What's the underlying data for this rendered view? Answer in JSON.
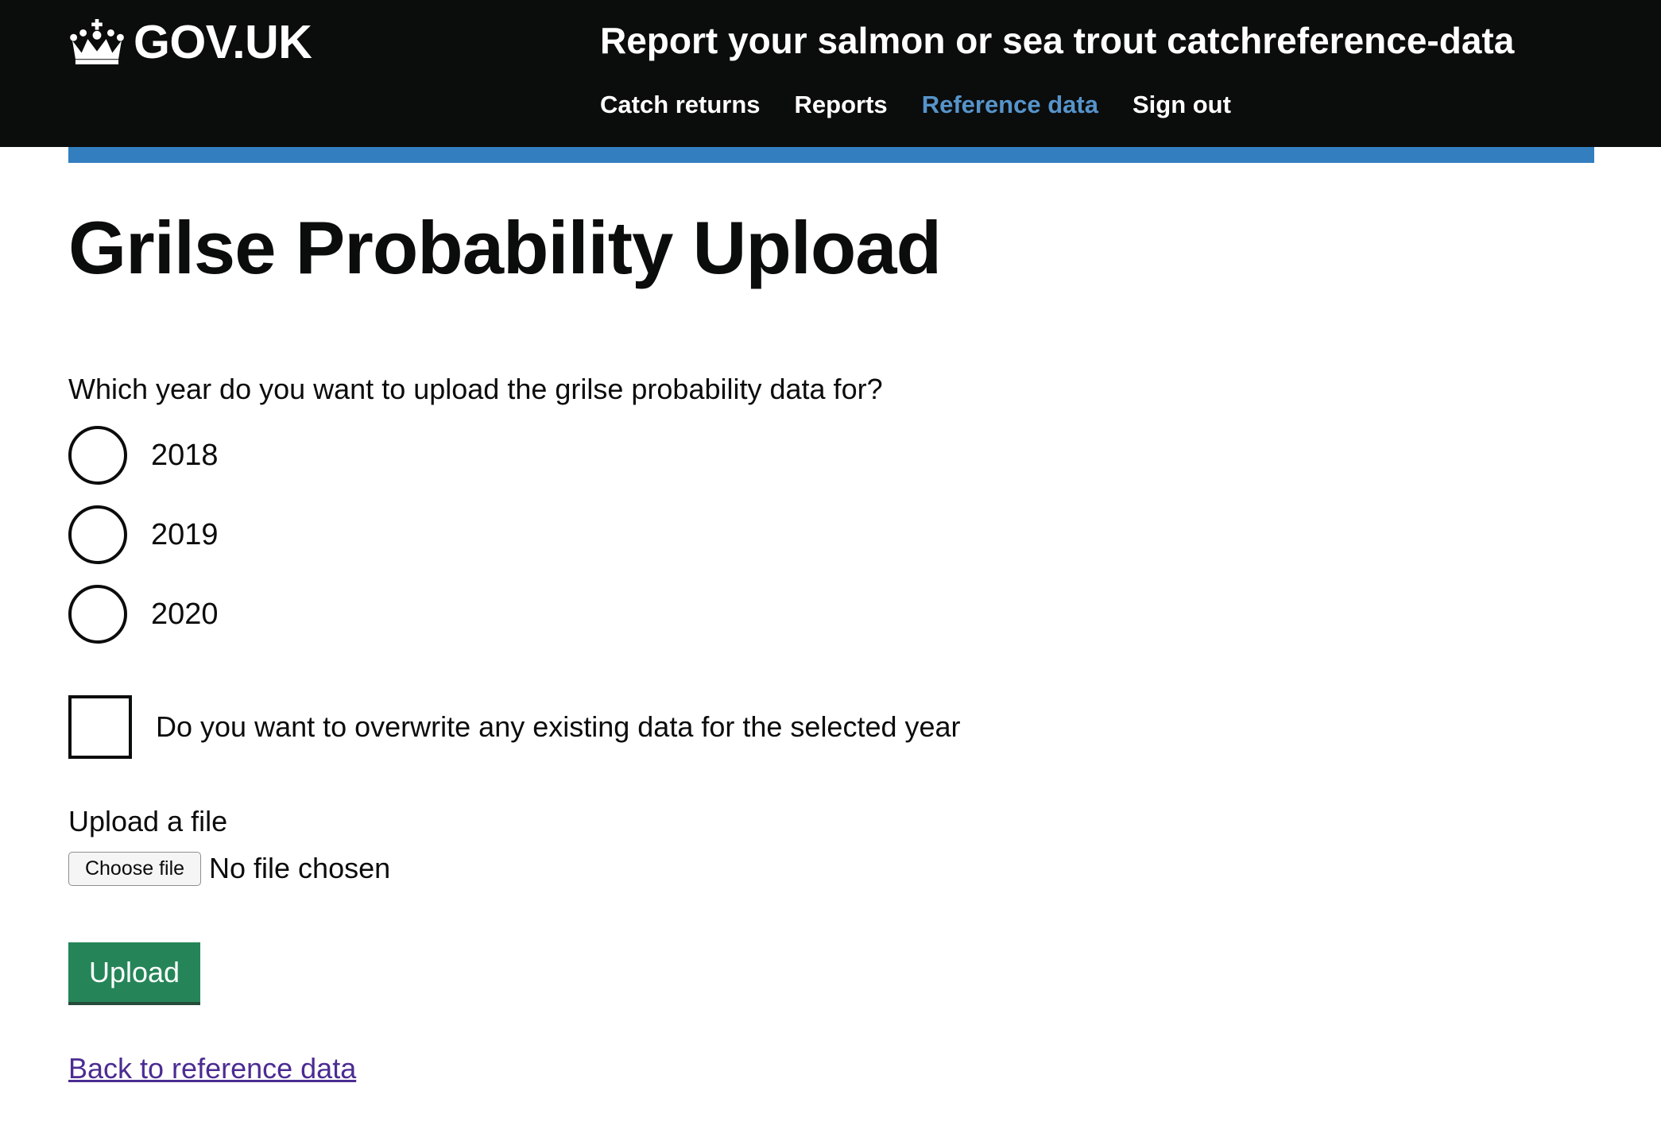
{
  "header": {
    "logo_text": "GOV.UK",
    "logo_icon": "crown-icon",
    "service_name": "Report your salmon or sea trout catchreference-data",
    "nav": [
      {
        "label": "Catch returns",
        "active": false
      },
      {
        "label": "Reports",
        "active": false
      },
      {
        "label": "Reference data",
        "active": true
      },
      {
        "label": "Sign out",
        "active": false
      }
    ]
  },
  "colors": {
    "header_bg": "#0b0c0c",
    "accent_bar": "#1d70b8",
    "nav_active": "#5694ca",
    "button_green": "#00703c",
    "link_visited": "#4c2c92"
  },
  "main": {
    "title": "Grilse Probability Upload",
    "year_question": "Which year do you want to upload the grilse probability data for?",
    "years": [
      {
        "label": "2018",
        "selected": false
      },
      {
        "label": "2019",
        "selected": false
      },
      {
        "label": "2020",
        "selected": false
      }
    ],
    "overwrite_label": "Do you want to overwrite any existing data for the selected year",
    "overwrite_checked": false,
    "upload_label": "Upload a file",
    "file_button_label": "Choose file",
    "file_status": "No file chosen",
    "upload_button": "Upload",
    "back_link": "Back to reference data"
  }
}
